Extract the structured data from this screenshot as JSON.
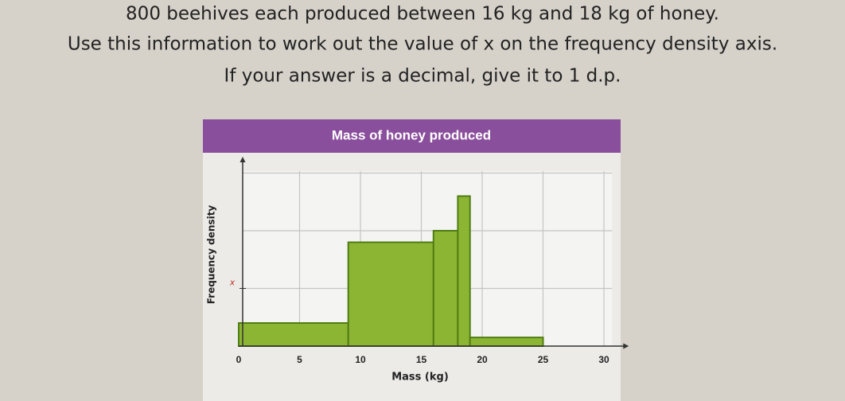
{
  "question": [
    "800 beehives each produced between 16 kg and 18 kg of honey.",
    "Use this information to work out the value of x on the frequency density axis.",
    "If your answer is a decimal, give it to 1 d.p."
  ],
  "chart_data": {
    "type": "histogram",
    "title": "Mass of honey produced",
    "x_label": "Mass (kg)",
    "y_label": "Frequency density",
    "bins": [
      0,
      9,
      16,
      18,
      19,
      25
    ],
    "values": [
      0.4,
      1.8,
      2,
      2.6,
      0.15
    ],
    "color": "#8db534",
    "edge_color": "#4f7d12",
    "xlim": [
      0,
      31
    ],
    "xticks": [
      0,
      5,
      10,
      15,
      20,
      25,
      30
    ],
    "ylim": [
      0,
      3.2
    ],
    "yticks": [
      {
        "value": 1,
        "label": "x"
      }
    ],
    "ygrid": [
      1,
      2,
      3
    ],
    "grid": true
  }
}
